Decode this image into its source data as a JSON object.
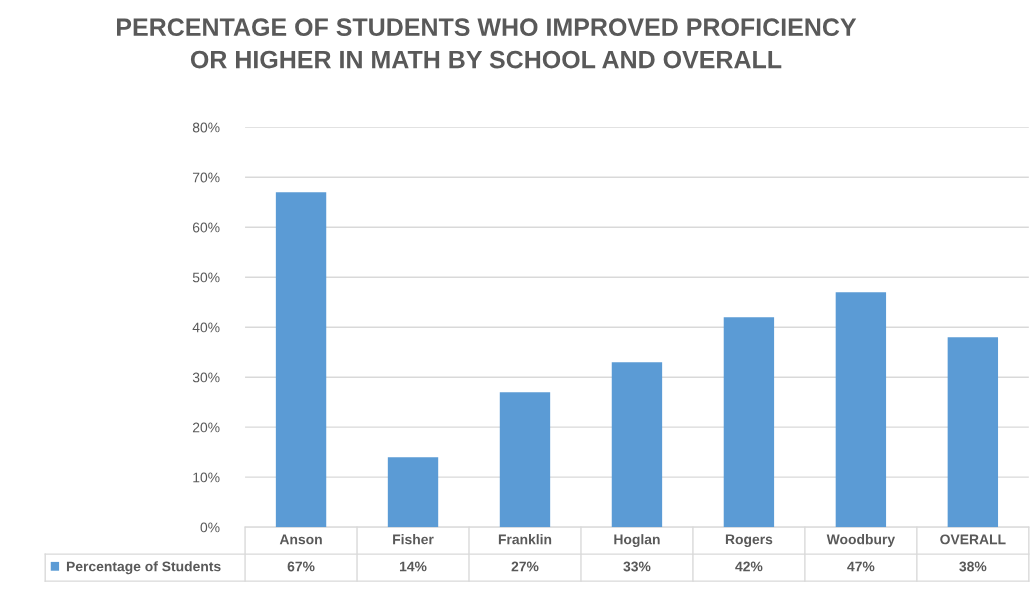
{
  "chart_data": {
    "type": "bar",
    "title": "PERCENTAGE OF STUDENTS WHO IMPROVED PROFICIENCY\nOR HIGHER IN MATH BY SCHOOL AND OVERALL",
    "categories": [
      "Anson",
      "Fisher",
      "Franklin",
      "Hoglan",
      "Rogers",
      "Woodbury",
      "OVERALL"
    ],
    "series": [
      {
        "name": "Percentage of Students",
        "color": "#5b9bd5",
        "values": [
          67,
          14,
          27,
          33,
          42,
          47,
          38
        ],
        "value_labels": [
          "67%",
          "14%",
          "27%",
          "33%",
          "42%",
          "47%",
          "38%"
        ]
      }
    ],
    "ylim": [
      0,
      80
    ],
    "yticks": [
      {
        "value": 0,
        "label": "0%"
      },
      {
        "value": 10,
        "label": "10%"
      },
      {
        "value": 20,
        "label": "20%"
      },
      {
        "value": 30,
        "label": "30%"
      },
      {
        "value": 40,
        "label": "40%"
      },
      {
        "value": 50,
        "label": "50%"
      },
      {
        "value": 60,
        "label": "60%"
      },
      {
        "value": 70,
        "label": "70%"
      },
      {
        "value": 80,
        "label": "80%"
      }
    ],
    "grid": "y",
    "legend": "bottom left"
  }
}
